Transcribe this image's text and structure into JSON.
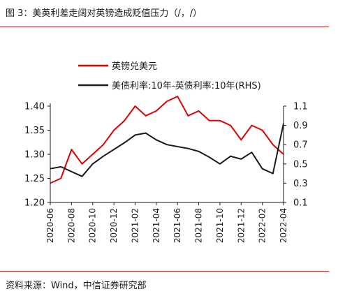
{
  "header": {
    "title": "图 3：美英利差走阔对英镑造成贬值压力（/，/）"
  },
  "footer": {
    "source": "资料来源：Wind，中信证券研究部"
  },
  "colors": {
    "series1": "#e00000",
    "series2": "#1a1a1a",
    "rule": "#b22222"
  },
  "chart_data": {
    "type": "line",
    "x_ticks": [
      "2020-06",
      "2020-08",
      "2020-10",
      "2020-12",
      "2021-02",
      "2021-04",
      "2021-06",
      "2021-08",
      "2021-10",
      "2021-12",
      "2022-02",
      "2022-04"
    ],
    "x_range": [
      "2020-06",
      "2022-04"
    ],
    "y_left": {
      "range": [
        1.2,
        1.4
      ],
      "ticks": [
        "1.20",
        "1.25",
        "1.30",
        "1.35",
        "1.40"
      ]
    },
    "y_right": {
      "range": [
        0.1,
        1.1
      ],
      "ticks": [
        "0.1",
        "0.3",
        "0.5",
        "0.7",
        "0.9",
        "1.1"
      ],
      "label": ""
    },
    "grid": false,
    "legend_position": "top-center",
    "series": [
      {
        "name": "英镑兑美元",
        "axis": "left",
        "color": "#e00000",
        "x": [
          "2020-06",
          "2020-07",
          "2020-08",
          "2020-09",
          "2020-10",
          "2020-11",
          "2020-12",
          "2021-01",
          "2021-02",
          "2021-03",
          "2021-04",
          "2021-05",
          "2021-06",
          "2021-07",
          "2021-08",
          "2021-09",
          "2021-10",
          "2021-11",
          "2021-12",
          "2022-01",
          "2022-02",
          "2022-03",
          "2022-04"
        ],
        "values": [
          1.24,
          1.25,
          1.31,
          1.28,
          1.3,
          1.32,
          1.35,
          1.37,
          1.4,
          1.38,
          1.39,
          1.41,
          1.42,
          1.38,
          1.39,
          1.37,
          1.37,
          1.36,
          1.33,
          1.36,
          1.35,
          1.32,
          1.3
        ]
      },
      {
        "name": "美债利率:10年-英债利率:10年(RHS)",
        "axis": "right",
        "color": "#1a1a1a",
        "x": [
          "2020-06",
          "2020-07",
          "2020-08",
          "2020-09",
          "2020-10",
          "2020-11",
          "2020-12",
          "2021-01",
          "2021-02",
          "2021-03",
          "2021-04",
          "2021-05",
          "2021-06",
          "2021-07",
          "2021-08",
          "2021-09",
          "2021-10",
          "2021-11",
          "2021-12",
          "2022-01",
          "2022-02",
          "2022-03",
          "2022-04"
        ],
        "values": [
          0.45,
          0.47,
          0.42,
          0.37,
          0.5,
          0.58,
          0.65,
          0.72,
          0.8,
          0.82,
          0.75,
          0.7,
          0.68,
          0.66,
          0.63,
          0.57,
          0.5,
          0.58,
          0.55,
          0.62,
          0.45,
          0.4,
          0.92
        ]
      }
    ]
  }
}
